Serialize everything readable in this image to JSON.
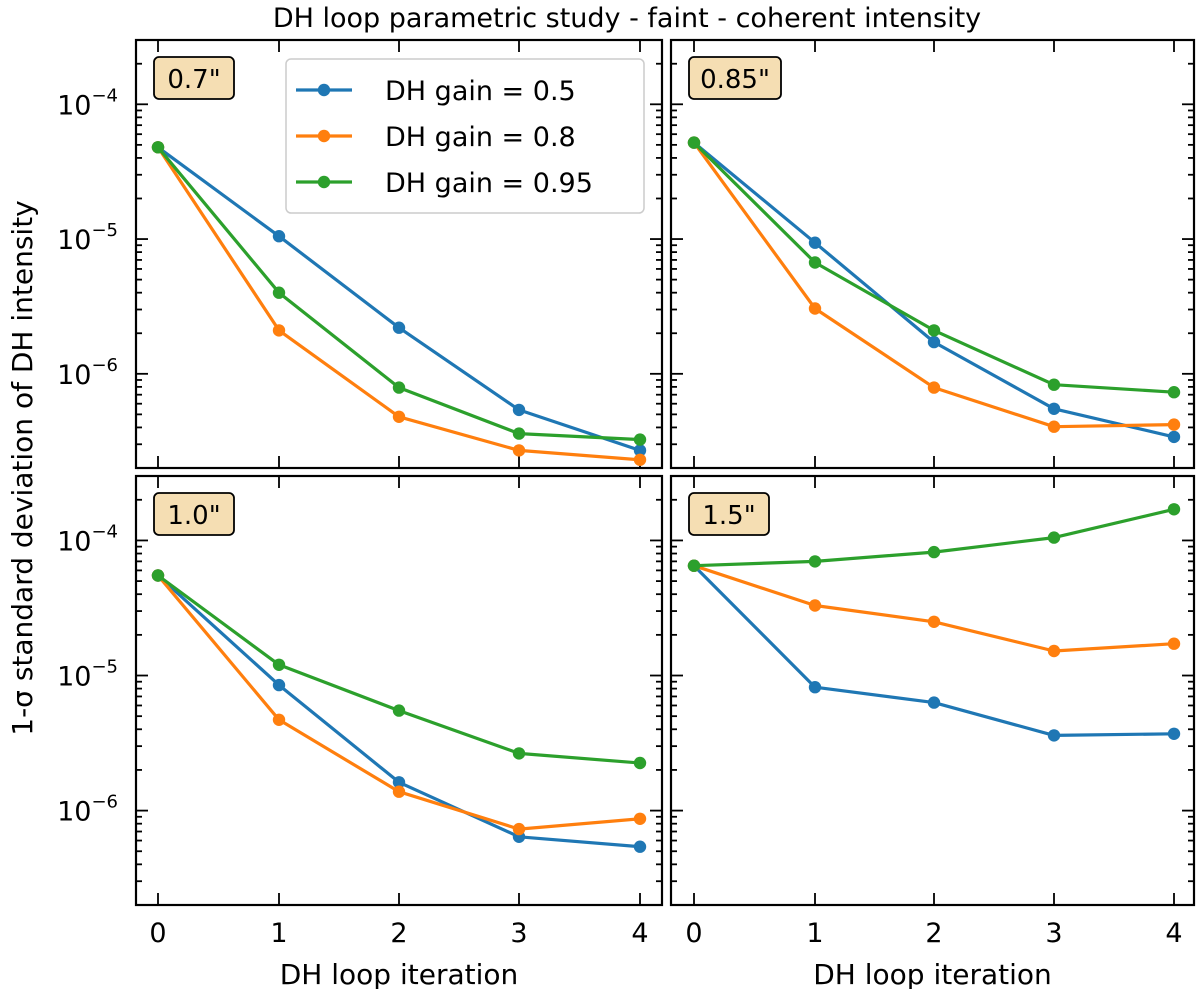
{
  "figure_title": "DH loop parametric study - faint - coherent intensity",
  "shared_ylabel": "1-σ standard deviation of DH intensity",
  "colors": {
    "series0": "#1f77b4",
    "series1": "#ff7f0e",
    "series2": "#2ca02c",
    "badge_bg": "#f5deb3"
  },
  "legend": [
    "DH gain = 0.5",
    "DH gain = 0.8",
    "DH gain = 0.95"
  ],
  "chart_data": [
    {
      "type": "line",
      "position": "top-left",
      "annotation": "0.7\"",
      "x": [
        0,
        1,
        2,
        3,
        4
      ],
      "xlabel": "",
      "xticklabels": [],
      "ylabel": "1-σ standard deviation of DH intensity",
      "yscale": "log",
      "ylim": [
        2e-07,
        0.0003
      ],
      "yticklabels": [
        {
          "base": "10",
          "exp": "−4",
          "value": 0.0001
        },
        {
          "base": "10",
          "exp": "−5",
          "value": 1e-05
        },
        {
          "base": "10",
          "exp": "−6",
          "value": 1e-06
        }
      ],
      "series": [
        {
          "name": "DH gain = 0.5",
          "values": [
            4.8e-05,
            1.05e-05,
            2.2e-06,
            5.4e-07,
            2.7e-07
          ]
        },
        {
          "name": "DH gain = 0.8",
          "values": [
            4.8e-05,
            2.1e-06,
            4.8e-07,
            2.7e-07,
            2.3e-07
          ]
        },
        {
          "name": "DH gain = 0.95",
          "values": [
            4.8e-05,
            4e-06,
            7.9e-07,
            3.6e-07,
            3.25e-07
          ]
        }
      ]
    },
    {
      "type": "line",
      "position": "top-right",
      "annotation": "0.85\"",
      "x": [
        0,
        1,
        2,
        3,
        4
      ],
      "xlabel": "",
      "xticklabels": [],
      "ylabel": "",
      "yscale": "log",
      "ylim": [
        2e-07,
        0.0003
      ],
      "yticklabels": [],
      "series": [
        {
          "name": "DH gain = 0.5",
          "values": [
            5.2e-05,
            9.4e-06,
            1.72e-06,
            5.5e-07,
            3.4e-07
          ]
        },
        {
          "name": "DH gain = 0.8",
          "values": [
            5.2e-05,
            3.05e-06,
            7.9e-07,
            4.05e-07,
            4.2e-07
          ]
        },
        {
          "name": "DH gain = 0.95",
          "values": [
            5.2e-05,
            6.7e-06,
            2.1e-06,
            8.3e-07,
            7.3e-07
          ]
        }
      ]
    },
    {
      "type": "line",
      "position": "bottom-left",
      "annotation": "1.0\"",
      "x": [
        0,
        1,
        2,
        3,
        4
      ],
      "xlabel": "DH loop iteration",
      "xticklabels": [
        "0",
        "1",
        "2",
        "3",
        "4"
      ],
      "ylabel": "",
      "yscale": "log",
      "ylim": [
        2e-07,
        0.0003
      ],
      "yticklabels": [
        {
          "base": "10",
          "exp": "−4",
          "value": 0.0001
        },
        {
          "base": "10",
          "exp": "−5",
          "value": 1e-05
        },
        {
          "base": "10",
          "exp": "−6",
          "value": 1e-06
        }
      ],
      "series": [
        {
          "name": "DH gain = 0.5",
          "values": [
            5.5e-05,
            8.5e-06,
            1.62e-06,
            6.4e-07,
            5.4e-07
          ]
        },
        {
          "name": "DH gain = 0.8",
          "values": [
            5.5e-05,
            4.7e-06,
            1.38e-06,
            7.3e-07,
            8.7e-07
          ]
        },
        {
          "name": "DH gain = 0.95",
          "values": [
            5.5e-05,
            1.2e-05,
            5.5e-06,
            2.65e-06,
            2.25e-06
          ]
        }
      ]
    },
    {
      "type": "line",
      "position": "bottom-right",
      "annotation": "1.5\"",
      "x": [
        0,
        1,
        2,
        3,
        4
      ],
      "xlabel": "DH loop iteration",
      "xticklabels": [
        "0",
        "1",
        "2",
        "3",
        "4"
      ],
      "ylabel": "",
      "yscale": "log",
      "ylim": [
        2e-07,
        0.0003
      ],
      "yticklabels": [],
      "series": [
        {
          "name": "DH gain = 0.5",
          "values": [
            6.5e-05,
            8.2e-06,
            6.3e-06,
            3.6e-06,
            3.7e-06
          ]
        },
        {
          "name": "DH gain = 0.8",
          "values": [
            6.5e-05,
            3.3e-05,
            2.5e-05,
            1.52e-05,
            1.72e-05
          ]
        },
        {
          "name": "DH gain = 0.95",
          "values": [
            6.5e-05,
            7e-05,
            8.2e-05,
            0.000105,
            0.00017
          ]
        }
      ]
    }
  ]
}
